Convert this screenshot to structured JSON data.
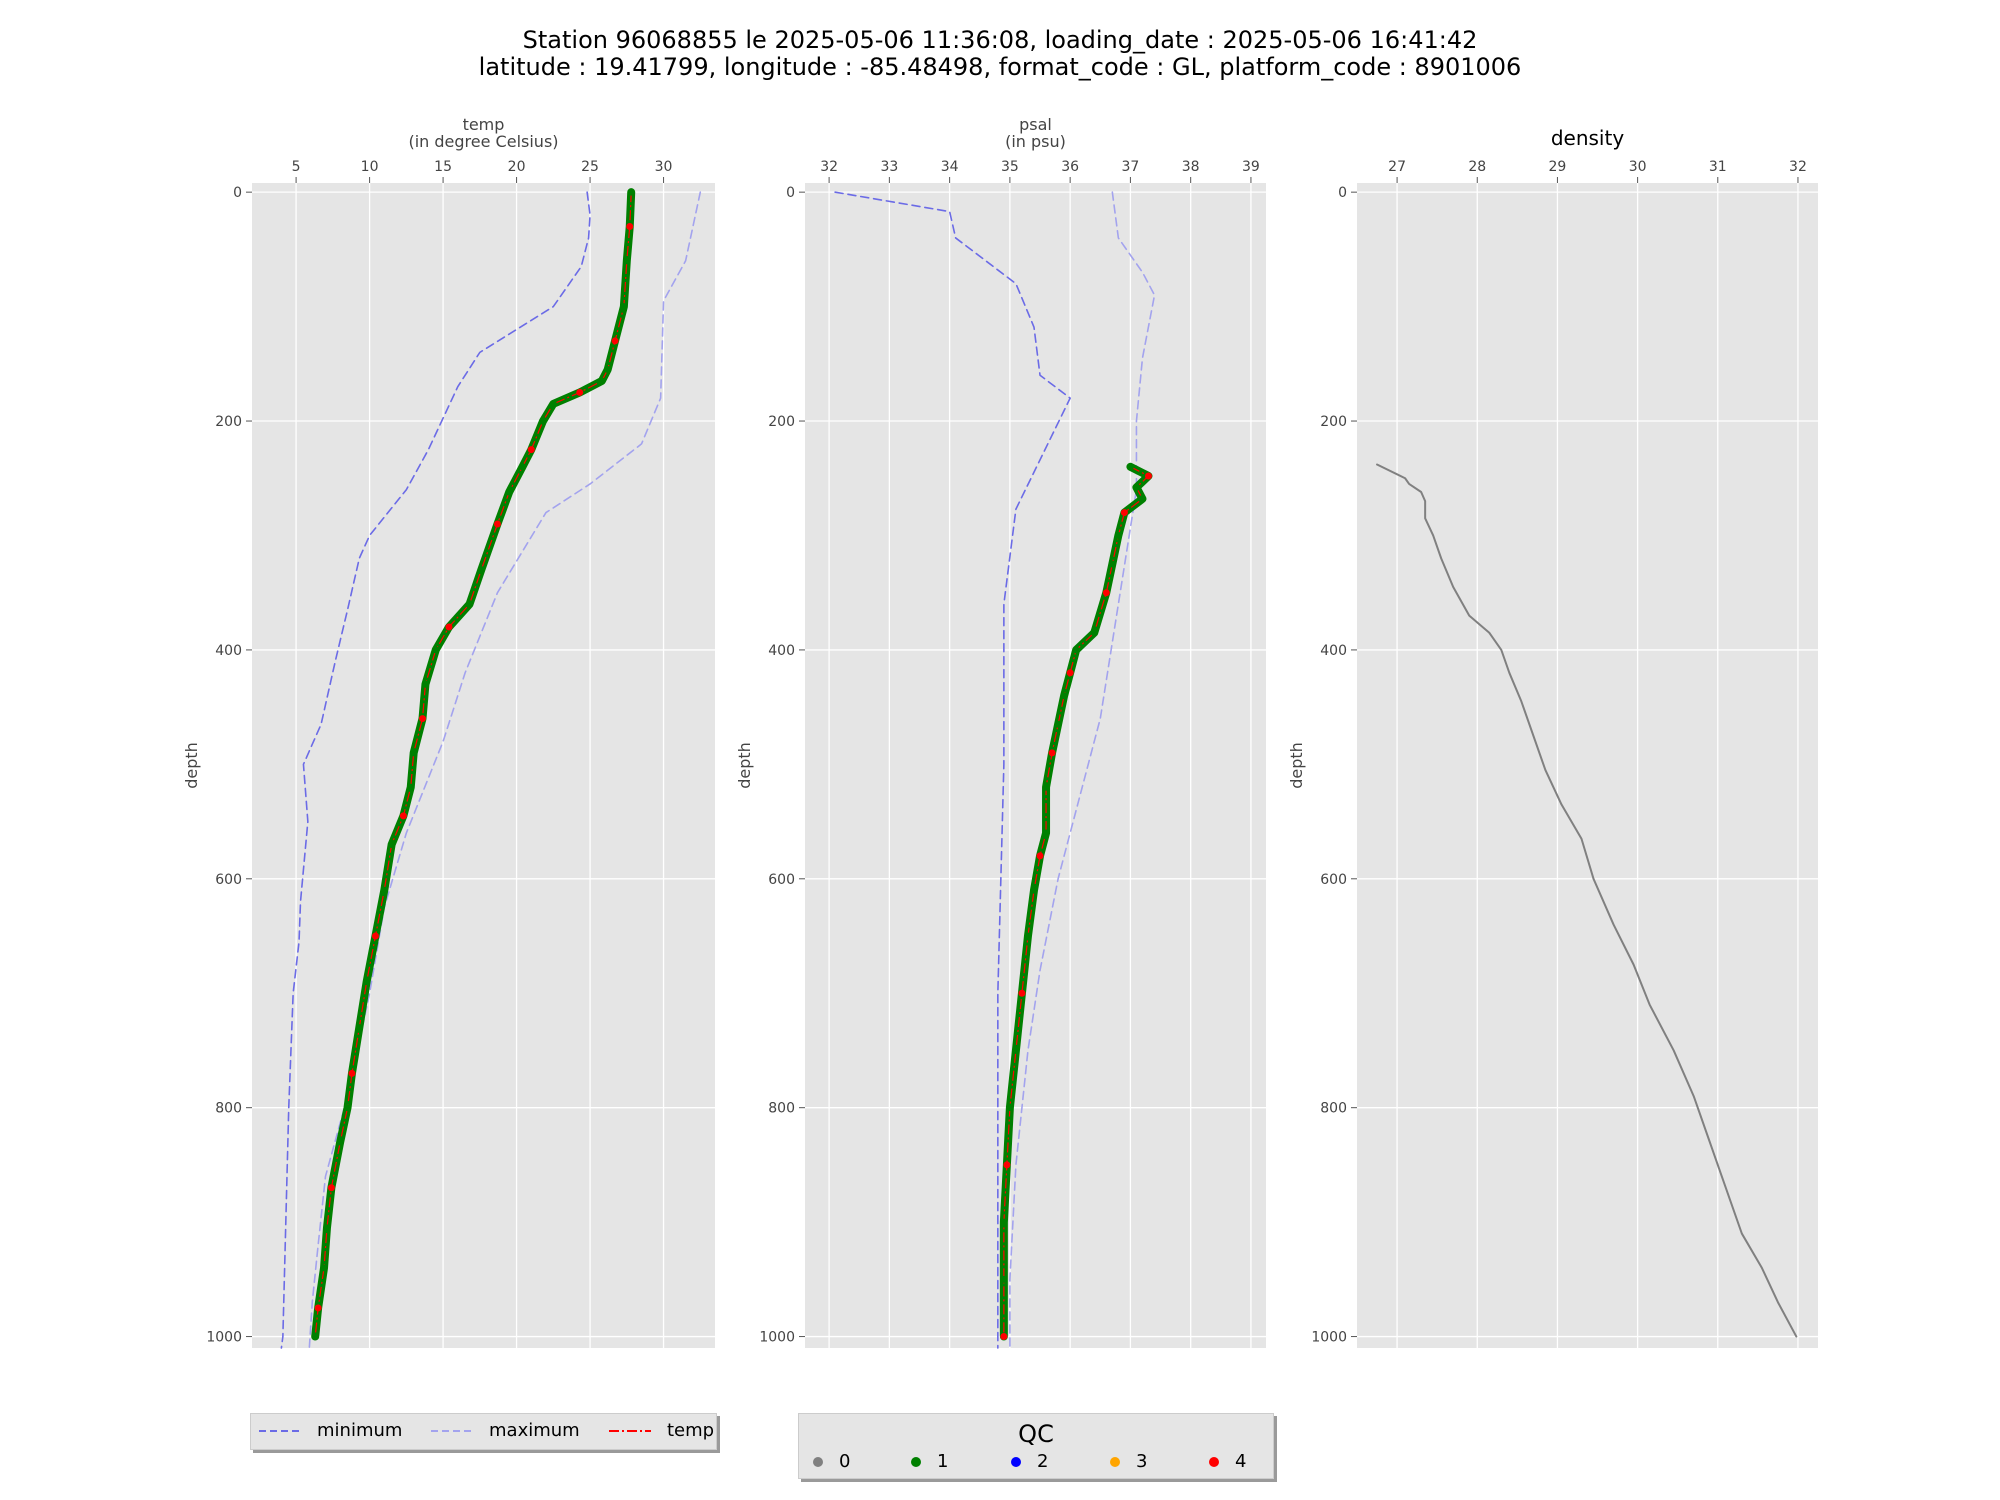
{
  "title": {
    "line1": "Station 96068855 le 2025-05-06 11:36:08, loading_date : 2025-05-06 16:41:42",
    "line2": "latitude : 19.41799, longitude : -85.48498, format_code : GL, platform_code : 8901006"
  },
  "colors": {
    "minimum": "#6b6be6",
    "maximum": "#a3a3ee",
    "qc0": "#808080",
    "qc1": "#008000",
    "qc2": "#0000ff",
    "qc3": "#ffa500",
    "qc4": "#ff0000",
    "density": "#808080",
    "panel_bg": "#e5e5e5"
  },
  "legend_main": {
    "items": [
      "minimum",
      "maximum",
      "temp"
    ]
  },
  "legend_qc": {
    "title": "QC",
    "items": [
      "0",
      "1",
      "2",
      "3",
      "4"
    ]
  },
  "chart_data": [
    {
      "type": "line",
      "id": "temp",
      "xlabel": "temp",
      "xlabel2": "(in degree Celsius)",
      "ylabel": "depth",
      "xlim": [
        2,
        33.5
      ],
      "ylim": [
        1010,
        -8
      ],
      "xticks": [
        5,
        10,
        15,
        20,
        25,
        30
      ],
      "yticks": [
        0,
        200,
        400,
        600,
        800,
        1000
      ],
      "series": [
        {
          "name": "minimum",
          "style": "dashed",
          "points": [
            [
              24.8,
              0
            ],
            [
              25.0,
              20
            ],
            [
              24.9,
              40
            ],
            [
              24.4,
              65
            ],
            [
              22.5,
              100
            ],
            [
              17.5,
              140
            ],
            [
              16.0,
              170
            ],
            [
              14.0,
              225
            ],
            [
              12.5,
              260
            ],
            [
              10.0,
              300
            ],
            [
              9.3,
              320
            ],
            [
              8.5,
              365
            ],
            [
              7.7,
              408
            ],
            [
              6.7,
              465
            ],
            [
              5.5,
              500
            ],
            [
              5.8,
              550
            ],
            [
              5.3,
              620
            ],
            [
              5.2,
              655
            ],
            [
              4.8,
              700
            ],
            [
              4.5,
              800
            ],
            [
              4.3,
              900
            ],
            [
              4.1,
              1000
            ],
            [
              4.0,
              1010
            ]
          ]
        },
        {
          "name": "maximum",
          "style": "dashed",
          "points": [
            [
              32.5,
              0
            ],
            [
              31.5,
              60
            ],
            [
              30.0,
              95
            ],
            [
              29.8,
              180
            ],
            [
              28.5,
              220
            ],
            [
              25.0,
              255
            ],
            [
              22.0,
              280
            ],
            [
              18.7,
              350
            ],
            [
              16.5,
              420
            ],
            [
              15.0,
              480
            ],
            [
              12.5,
              560
            ],
            [
              11.0,
              625
            ],
            [
              10.0,
              700
            ],
            [
              8.5,
              790
            ],
            [
              7.0,
              860
            ],
            [
              6.5,
              920
            ],
            [
              6.1,
              970
            ],
            [
              5.9,
              1010
            ]
          ]
        },
        {
          "name": "temp",
          "qc": 1,
          "points": [
            [
              27.8,
              0
            ],
            [
              27.7,
              30
            ],
            [
              27.5,
              60
            ],
            [
              27.3,
              100
            ],
            [
              26.7,
              130
            ],
            [
              26.2,
              155
            ],
            [
              25.8,
              165
            ],
            [
              24.3,
              175
            ],
            [
              22.5,
              185
            ],
            [
              21.8,
              200
            ],
            [
              21.0,
              225
            ],
            [
              20.4,
              240
            ],
            [
              19.5,
              262
            ],
            [
              18.7,
              290
            ],
            [
              17.6,
              330
            ],
            [
              16.8,
              360
            ],
            [
              15.4,
              380
            ],
            [
              14.5,
              400
            ],
            [
              13.8,
              430
            ],
            [
              13.6,
              460
            ],
            [
              13.0,
              490
            ],
            [
              12.8,
              520
            ],
            [
              12.3,
              545
            ],
            [
              11.5,
              570
            ],
            [
              11.0,
              610
            ],
            [
              10.4,
              650
            ],
            [
              9.8,
              690
            ],
            [
              9.3,
              730
            ],
            [
              8.8,
              770
            ],
            [
              8.5,
              800
            ],
            [
              8.0,
              830
            ],
            [
              7.4,
              870
            ],
            [
              7.1,
              905
            ],
            [
              6.9,
              940
            ],
            [
              6.5,
              975
            ],
            [
              6.3,
              1000
            ]
          ]
        }
      ]
    },
    {
      "type": "line",
      "id": "psal",
      "xlabel": "psal",
      "xlabel2": "(in psu)",
      "ylabel": "depth",
      "xlim": [
        31.6,
        39.25
      ],
      "ylim": [
        1010,
        -8
      ],
      "xticks": [
        32,
        33,
        34,
        35,
        36,
        37,
        38,
        39
      ],
      "yticks": [
        0,
        200,
        400,
        600,
        800,
        1000
      ],
      "series": [
        {
          "name": "minimum",
          "style": "dashed",
          "points": [
            [
              32.1,
              0
            ],
            [
              34.0,
              17
            ],
            [
              34.1,
              40
            ],
            [
              35.1,
              80
            ],
            [
              35.4,
              118
            ],
            [
              35.5,
              160
            ],
            [
              36.0,
              180
            ],
            [
              35.1,
              277
            ],
            [
              34.9,
              360
            ],
            [
              34.9,
              500
            ],
            [
              34.8,
              700
            ],
            [
              34.8,
              900
            ],
            [
              34.8,
              1010
            ]
          ]
        },
        {
          "name": "maximum",
          "style": "dashed",
          "points": [
            [
              36.7,
              0
            ],
            [
              36.8,
              40
            ],
            [
              37.2,
              70
            ],
            [
              37.4,
              90
            ],
            [
              37.2,
              145
            ],
            [
              37.1,
              200
            ],
            [
              37.1,
              260
            ],
            [
              36.5,
              460
            ],
            [
              36.2,
              520
            ],
            [
              35.8,
              600
            ],
            [
              35.5,
              680
            ],
            [
              35.3,
              750
            ],
            [
              35.1,
              850
            ],
            [
              35.0,
              950
            ],
            [
              35.0,
              1010
            ]
          ]
        },
        {
          "name": "psal",
          "qc": 1,
          "points": [
            [
              37.0,
              240
            ],
            [
              37.3,
              248
            ],
            [
              37.1,
              258
            ],
            [
              37.2,
              268
            ],
            [
              36.9,
              280
            ],
            [
              36.8,
              300
            ],
            [
              36.7,
              325
            ],
            [
              36.6,
              350
            ],
            [
              36.4,
              385
            ],
            [
              36.1,
              400
            ],
            [
              36.0,
              420
            ],
            [
              35.9,
              440
            ],
            [
              35.8,
              465
            ],
            [
              35.7,
              490
            ],
            [
              35.6,
              520
            ],
            [
              35.6,
              560
            ],
            [
              35.5,
              580
            ],
            [
              35.4,
              610
            ],
            [
              35.3,
              650
            ],
            [
              35.2,
              700
            ],
            [
              35.1,
              750
            ],
            [
              35.0,
              800
            ],
            [
              34.95,
              850
            ],
            [
              34.9,
              900
            ],
            [
              34.9,
              950
            ],
            [
              34.9,
              1000
            ]
          ]
        }
      ]
    },
    {
      "type": "line",
      "id": "density",
      "title": "density",
      "ylabel": "depth",
      "xlim": [
        26.5,
        32.25
      ],
      "ylim": [
        1010,
        -8
      ],
      "xticks": [
        27,
        28,
        29,
        30,
        31,
        32
      ],
      "yticks": [
        0,
        200,
        400,
        600,
        800,
        1000
      ],
      "series": [
        {
          "name": "density",
          "points": [
            [
              26.75,
              238
            ],
            [
              27.1,
              250
            ],
            [
              27.15,
              255
            ],
            [
              27.3,
              262
            ],
            [
              27.35,
              270
            ],
            [
              27.35,
              285
            ],
            [
              27.45,
              300
            ],
            [
              27.55,
              320
            ],
            [
              27.7,
              345
            ],
            [
              27.9,
              370
            ],
            [
              28.15,
              385
            ],
            [
              28.3,
              400
            ],
            [
              28.4,
              420
            ],
            [
              28.55,
              445
            ],
            [
              28.7,
              475
            ],
            [
              28.85,
              505
            ],
            [
              29.05,
              535
            ],
            [
              29.3,
              565
            ],
            [
              29.45,
              600
            ],
            [
              29.7,
              640
            ],
            [
              29.95,
              675
            ],
            [
              30.15,
              710
            ],
            [
              30.45,
              750
            ],
            [
              30.7,
              790
            ],
            [
              30.9,
              830
            ],
            [
              31.1,
              870
            ],
            [
              31.3,
              910
            ],
            [
              31.55,
              940
            ],
            [
              31.75,
              970
            ],
            [
              31.98,
              1000
            ]
          ]
        }
      ]
    }
  ]
}
